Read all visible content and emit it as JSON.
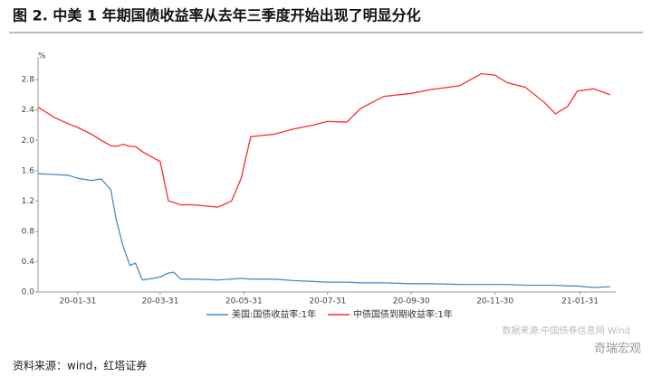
{
  "chart_data": {
    "type": "line",
    "title": "图 2. 中美 1 年期国债收益率从去年三季度开始出现了明显分化",
    "y_label": "%",
    "x": [
      "20-01-02",
      "20-01-14",
      "20-01-24",
      "20-01-31",
      "20-02-10",
      "20-02-17",
      "20-02-24",
      "20-02-28",
      "20-03-04",
      "20-03-09",
      "20-03-13",
      "20-03-18",
      "20-03-26",
      "20-03-31",
      "20-04-06",
      "20-04-10",
      "20-04-15",
      "20-04-24",
      "20-05-12",
      "20-05-22",
      "20-05-29",
      "20-06-05",
      "20-06-22",
      "20-07-06",
      "20-07-20",
      "20-07-31",
      "20-08-14",
      "20-08-24",
      "20-09-10",
      "20-09-30",
      "20-10-14",
      "20-11-04",
      "20-11-20",
      "20-11-30",
      "20-12-09",
      "20-12-22",
      "21-01-05",
      "21-01-13",
      "21-01-22",
      "21-01-29",
      "21-02-10",
      "21-02-22"
    ],
    "series": [
      {
        "name": "美国:国债收益率:1年",
        "color": "#4a8cc4",
        "values": [
          1.56,
          1.55,
          1.54,
          1.5,
          1.47,
          1.49,
          1.35,
          0.95,
          0.6,
          0.35,
          0.38,
          0.16,
          0.18,
          0.2,
          0.25,
          0.26,
          0.17,
          0.17,
          0.16,
          0.17,
          0.18,
          0.17,
          0.17,
          0.15,
          0.14,
          0.13,
          0.13,
          0.12,
          0.12,
          0.11,
          0.11,
          0.1,
          0.1,
          0.1,
          0.1,
          0.09,
          0.09,
          0.09,
          0.08,
          0.08,
          0.06,
          0.07
        ]
      },
      {
        "name": "中债国债到期收益率:1年",
        "color": "#ff2a2a",
        "values": [
          2.44,
          2.3,
          2.22,
          2.17,
          2.08,
          2.0,
          1.93,
          1.92,
          1.95,
          1.92,
          1.92,
          1.85,
          1.77,
          1.72,
          1.2,
          1.18,
          1.15,
          1.15,
          1.12,
          1.2,
          1.5,
          2.05,
          2.08,
          2.15,
          2.2,
          2.25,
          2.24,
          2.42,
          2.58,
          2.62,
          2.67,
          2.72,
          2.88,
          2.86,
          2.76,
          2.7,
          2.5,
          2.35,
          2.45,
          2.65,
          2.68,
          2.6
        ]
      }
    ],
    "xlim": [
      "20-01-02",
      "21-02-26"
    ],
    "xticks": [
      "20-01-31",
      "20-03-31",
      "20-05-31",
      "20-07-31",
      "20-09-30",
      "20-11-30",
      "21-01-31"
    ],
    "ylim": [
      0,
      3.1
    ],
    "yticks": [
      {
        "value": 0,
        "label": "0.0"
      },
      0.4,
      0.8,
      1.2,
      1.6,
      {
        "value": 2,
        "label": "2.0"
      },
      2.4,
      2.8
    ],
    "grid": false,
    "source_note": "数据来源:中国债券信息网 Wind",
    "footer": "资料来源：wind，红塔证券",
    "watermark": "奇瑞宏观"
  }
}
